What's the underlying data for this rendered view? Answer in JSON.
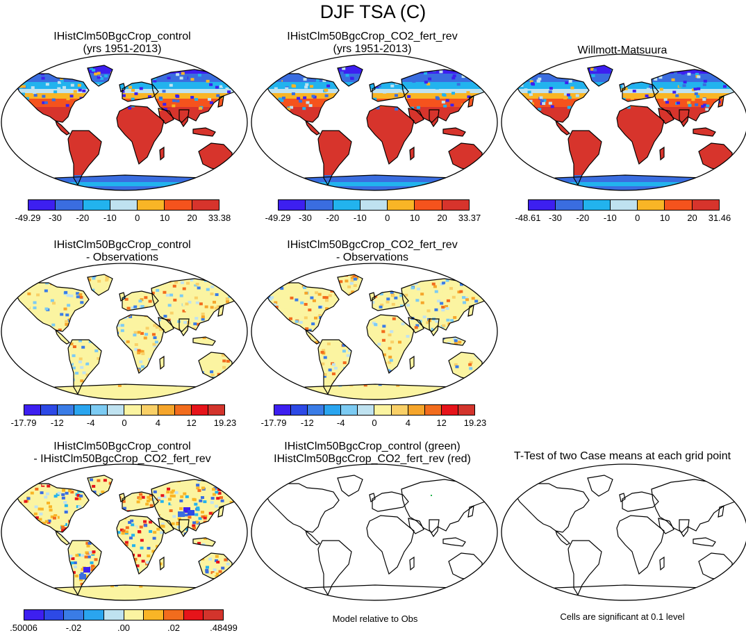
{
  "figure": {
    "title": "DJF TSA (C)",
    "note_model": "Model relative to Obs",
    "note_ttest": "Cells are significant at 0.1 level"
  },
  "panels": [
    {
      "id": "p1",
      "title": [
        "IHistClm50BgcCrop_control",
        "(yrs 1951-2013)"
      ],
      "fill": "abs"
    },
    {
      "id": "p2",
      "title": [
        "IHistClm50BgcCrop_CO2_fert_rev",
        "(yrs 1951-2013)"
      ],
      "fill": "abs"
    },
    {
      "id": "p3",
      "title": [
        "Willmott-Matsuura",
        ""
      ],
      "fill": "abs"
    },
    {
      "id": "p4",
      "title": [
        "IHistClm50BgcCrop_control",
        "- Observations"
      ],
      "fill": "bias"
    },
    {
      "id": "p5",
      "title": [
        "IHistClm50BgcCrop_CO2_fert_rev",
        "- Observations"
      ],
      "fill": "bias"
    },
    {
      "id": "p6",
      "title": [
        "IHistClm50BgcCrop_control",
        "- IHistClm50BgcCrop_CO2_fert_rev"
      ],
      "fill": "diff"
    },
    {
      "id": "p7",
      "title": [
        "IHistClm50BgcCrop_control (green)",
        "IHistClm50BgcCrop_CO2_fert_rev (red)"
      ],
      "fill": "none"
    },
    {
      "id": "p8",
      "title": [
        "T-Test of two Case means at each grid point",
        ""
      ],
      "fill": "none"
    }
  ],
  "colorbars": [
    {
      "id": "cb1",
      "colors": [
        "#3d1ff0",
        "#3a6de0",
        "#22b3ee",
        "#bfe2f0",
        "#f9b526",
        "#f5531d",
        "#d7342c"
      ],
      "labels": [
        "-49.29",
        "-30",
        "-20",
        "-10",
        "0",
        "10",
        "20",
        "33.38"
      ]
    },
    {
      "id": "cb2",
      "colors": [
        "#3d1ff0",
        "#3a6de0",
        "#22b3ee",
        "#bfe2f0",
        "#f9b526",
        "#f5531d",
        "#d7342c"
      ],
      "labels": [
        "-49.29",
        "-30",
        "-20",
        "-10",
        "0",
        "10",
        "20",
        "33.37"
      ]
    },
    {
      "id": "cb3",
      "colors": [
        "#3d1ff0",
        "#3a6de0",
        "#22b3ee",
        "#bfe2f0",
        "#f9b526",
        "#f5531d",
        "#d7342c"
      ],
      "labels": [
        "-48.61",
        "-30",
        "-20",
        "-10",
        "0",
        "10",
        "20",
        "31.46"
      ]
    },
    {
      "id": "cb4",
      "colors": [
        "#3d1ff0",
        "#2d49e6",
        "#3a7ce6",
        "#2aa5ef",
        "#7ccbf3",
        "#bfe2f0",
        "#fbf4a1",
        "#f9d067",
        "#f5a52b",
        "#f26c1d",
        "#e6141a",
        "#d3342c"
      ],
      "labels": [
        "-17.79",
        "-12",
        "-4",
        "0",
        "4",
        "12",
        "19.23"
      ]
    },
    {
      "id": "cb5",
      "colors": [
        "#3d1ff0",
        "#2d49e6",
        "#3a7ce6",
        "#2aa5ef",
        "#7ccbf3",
        "#bfe2f0",
        "#fbf4a1",
        "#f9d067",
        "#f5a52b",
        "#f26c1d",
        "#e6141a",
        "#d3342c"
      ],
      "labels": [
        "-17.79",
        "-12",
        "-4",
        "0",
        "4",
        "12",
        "19.23"
      ]
    },
    {
      "id": "cb6",
      "colors": [
        "#3d1ff0",
        "#2d49e6",
        "#3a7ce6",
        "#2aa5ef",
        "#bfe2f0",
        "#fbf4a1",
        "#f9b526",
        "#f26c1d",
        "#e6141a",
        "#d3342c"
      ],
      "labels": [
        ".50006",
        "-.02",
        ".00",
        ".02",
        ".48499"
      ]
    }
  ]
}
